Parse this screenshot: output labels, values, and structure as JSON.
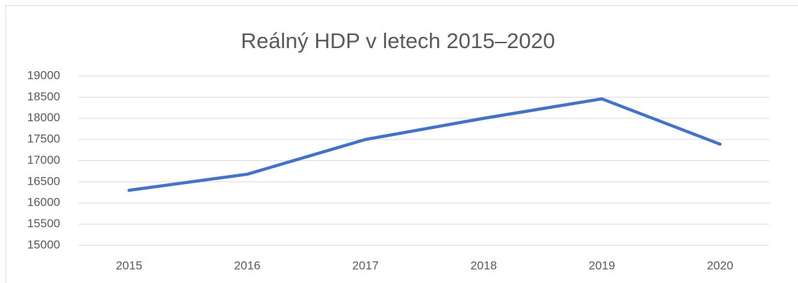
{
  "chart_data": {
    "type": "line",
    "title": "Reálný HDP v letech 2015–2020",
    "categories": [
      "2015",
      "2016",
      "2017",
      "2018",
      "2019",
      "2020"
    ],
    "series": [
      {
        "name": "Reálný HDP",
        "color": "#4472c4",
        "values": [
          16300,
          16680,
          17500,
          18000,
          18460,
          17390
        ]
      }
    ],
    "ylim": [
      15000,
      19000
    ],
    "yticks": [
      15000,
      15500,
      16000,
      16500,
      17000,
      17500,
      18000,
      18500,
      19000
    ],
    "grid": true
  }
}
